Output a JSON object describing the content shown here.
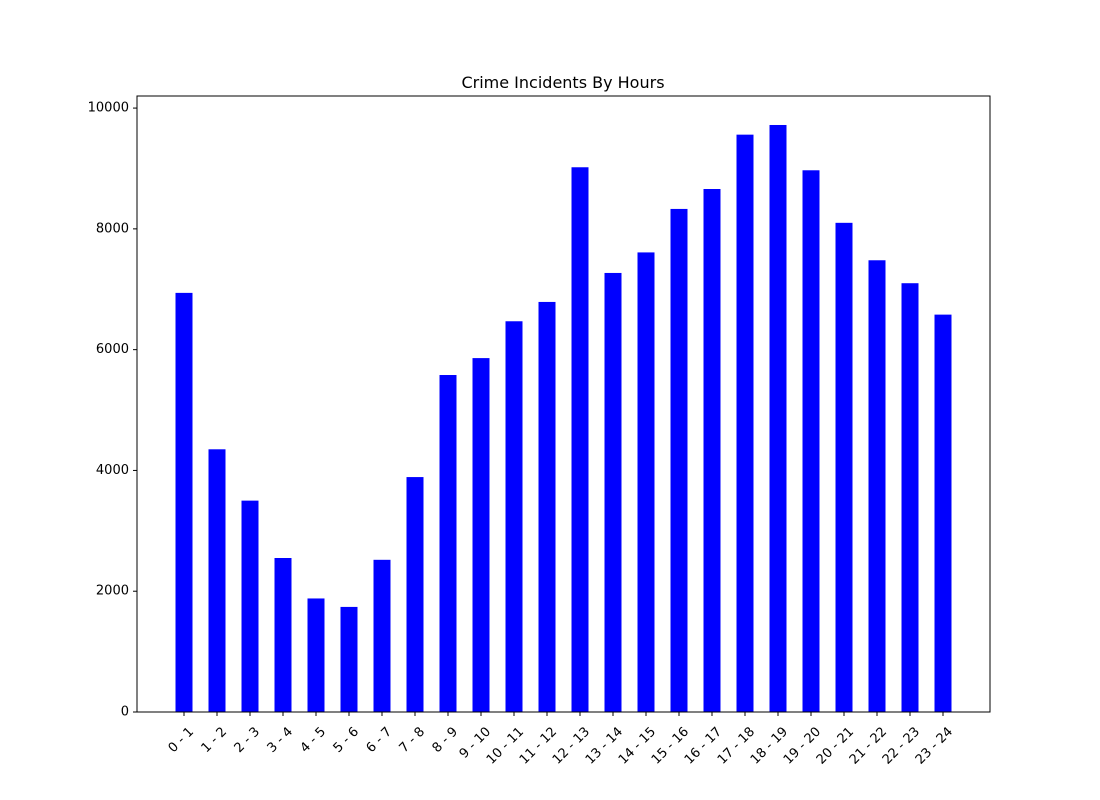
{
  "chart_data": {
    "type": "bar",
    "title": "Crime Incidents By Hours",
    "xlabel": "",
    "ylabel": "",
    "categories": [
      "0 - 1",
      "1 - 2",
      "2 - 3",
      "3 - 4",
      "4 - 5",
      "5 - 6",
      "6 - 7",
      "7 - 8",
      "8 - 9",
      "9 - 10",
      "10 - 11",
      "11 - 12",
      "12 - 13",
      "13 - 14",
      "14 - 15",
      "15 - 16",
      "16 - 17",
      "17 - 18",
      "18 - 19",
      "19 - 20",
      "20 - 21",
      "21 - 22",
      "22 - 23",
      "23 - 24"
    ],
    "values": [
      6940,
      4350,
      3500,
      2550,
      1880,
      1740,
      2520,
      3890,
      5580,
      5860,
      6470,
      6790,
      9020,
      7270,
      7610,
      8330,
      8660,
      9560,
      9720,
      8970,
      8100,
      7480,
      7100,
      6580
    ],
    "ylim": [
      0,
      10200
    ],
    "yticks": [
      0,
      2000,
      4000,
      6000,
      8000,
      10000
    ],
    "bar_color": "#0000ff",
    "grid": false,
    "legend": "none"
  }
}
